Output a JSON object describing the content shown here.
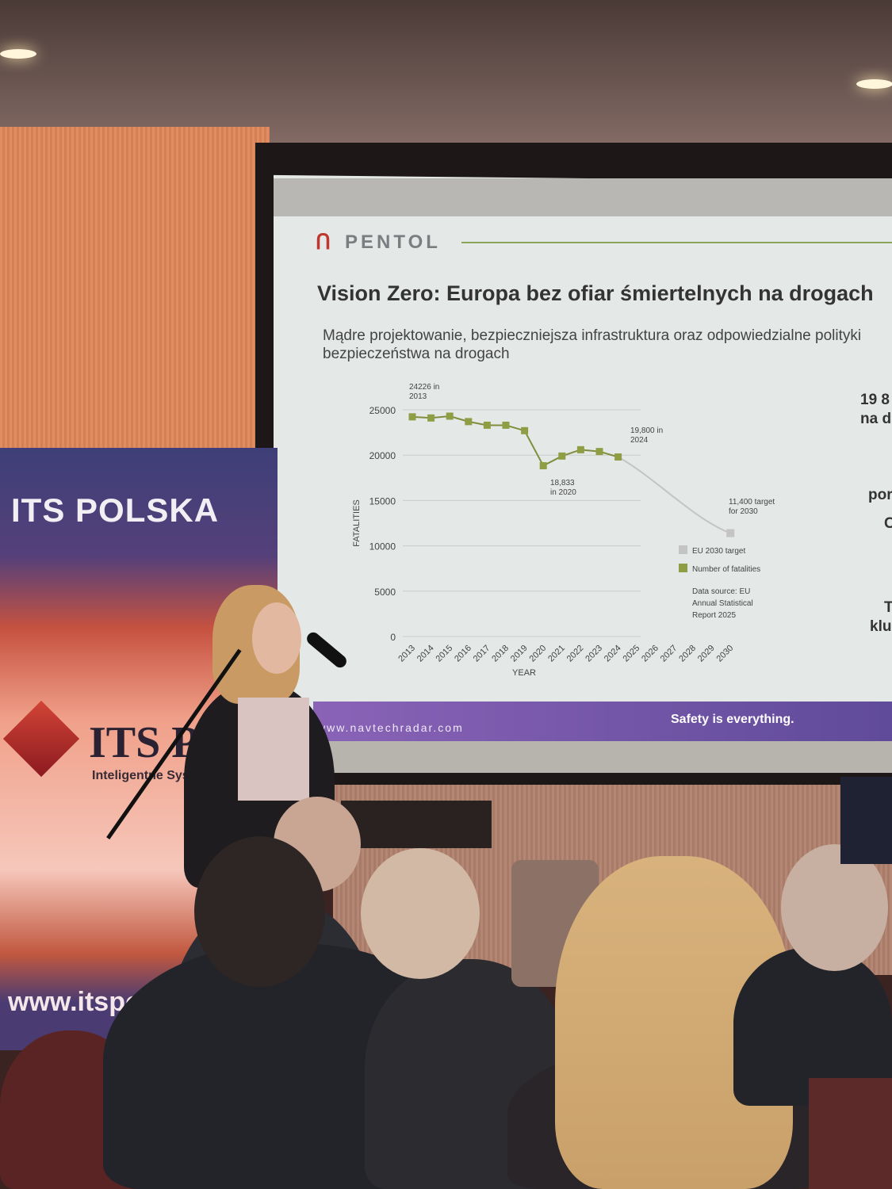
{
  "banner": {
    "title": "ITS POLSKA",
    "logo_text": "ITS PO",
    "logo_subtitle": "Inteligentne Systemy",
    "url": "www.itspo"
  },
  "slide": {
    "brand": "PENTOL",
    "title": "Vision Zero: Europa bez ofiar śmiertelnych na drogach",
    "subtitle_line1": "Mądre projektowanie, bezpieczniejsza infrastruktura oraz odpowiedzialne polityki",
    "subtitle_line2": "bezpieczeństwa na drogach",
    "side_text": [
      "19 8",
      "na d",
      "",
      "",
      "por",
      "C",
      "",
      "",
      "",
      "T",
      "klu"
    ],
    "footer_url": "www.navtechradar.com",
    "footer_tagline": "Safety is everything.",
    "colors": {
      "footer": "#6f52a8",
      "fatalities": "#8f9e45",
      "target": "#c4c4c4"
    }
  },
  "chart_data": {
    "type": "line",
    "xlabel": "YEAR",
    "ylabel": "FATALITIES",
    "ylim": [
      0,
      25000
    ],
    "yticks": [
      "0",
      "5000",
      "10000",
      "15000",
      "20000",
      "25000"
    ],
    "xticks": [
      "2013",
      "2014",
      "2015",
      "2016",
      "2017",
      "2018",
      "2019",
      "2020",
      "2021",
      "2022",
      "2023",
      "2024",
      "2025",
      "2026",
      "2027",
      "2028",
      "2029",
      "2030"
    ],
    "grid": true,
    "legend_placement": "bottom-right",
    "series": [
      {
        "name": "Number of fatalities",
        "color": "#8f9e45",
        "x": [
          2013,
          2014,
          2015,
          2016,
          2017,
          2018,
          2019,
          2020,
          2021,
          2022,
          2023,
          2024
        ],
        "y": [
          24226,
          24100,
          24300,
          23700,
          23300,
          23300,
          22700,
          18833,
          19900,
          20600,
          20400,
          19800
        ]
      },
      {
        "name": "EU 2030 target",
        "color": "#c4c4c4",
        "x": [
          2024,
          2030
        ],
        "y": [
          19800,
          11400
        ]
      }
    ],
    "annotations": [
      {
        "line1": "24226 in",
        "line2": "2013"
      },
      {
        "line1": "18,833",
        "line2": "in 2020"
      },
      {
        "line1": "19,800 in",
        "line2": "2024"
      },
      {
        "line1": "11,400 target",
        "line2": "for 2030"
      }
    ],
    "source": [
      "Data source: EU",
      "Annual Statistical",
      "Report 2025"
    ]
  }
}
